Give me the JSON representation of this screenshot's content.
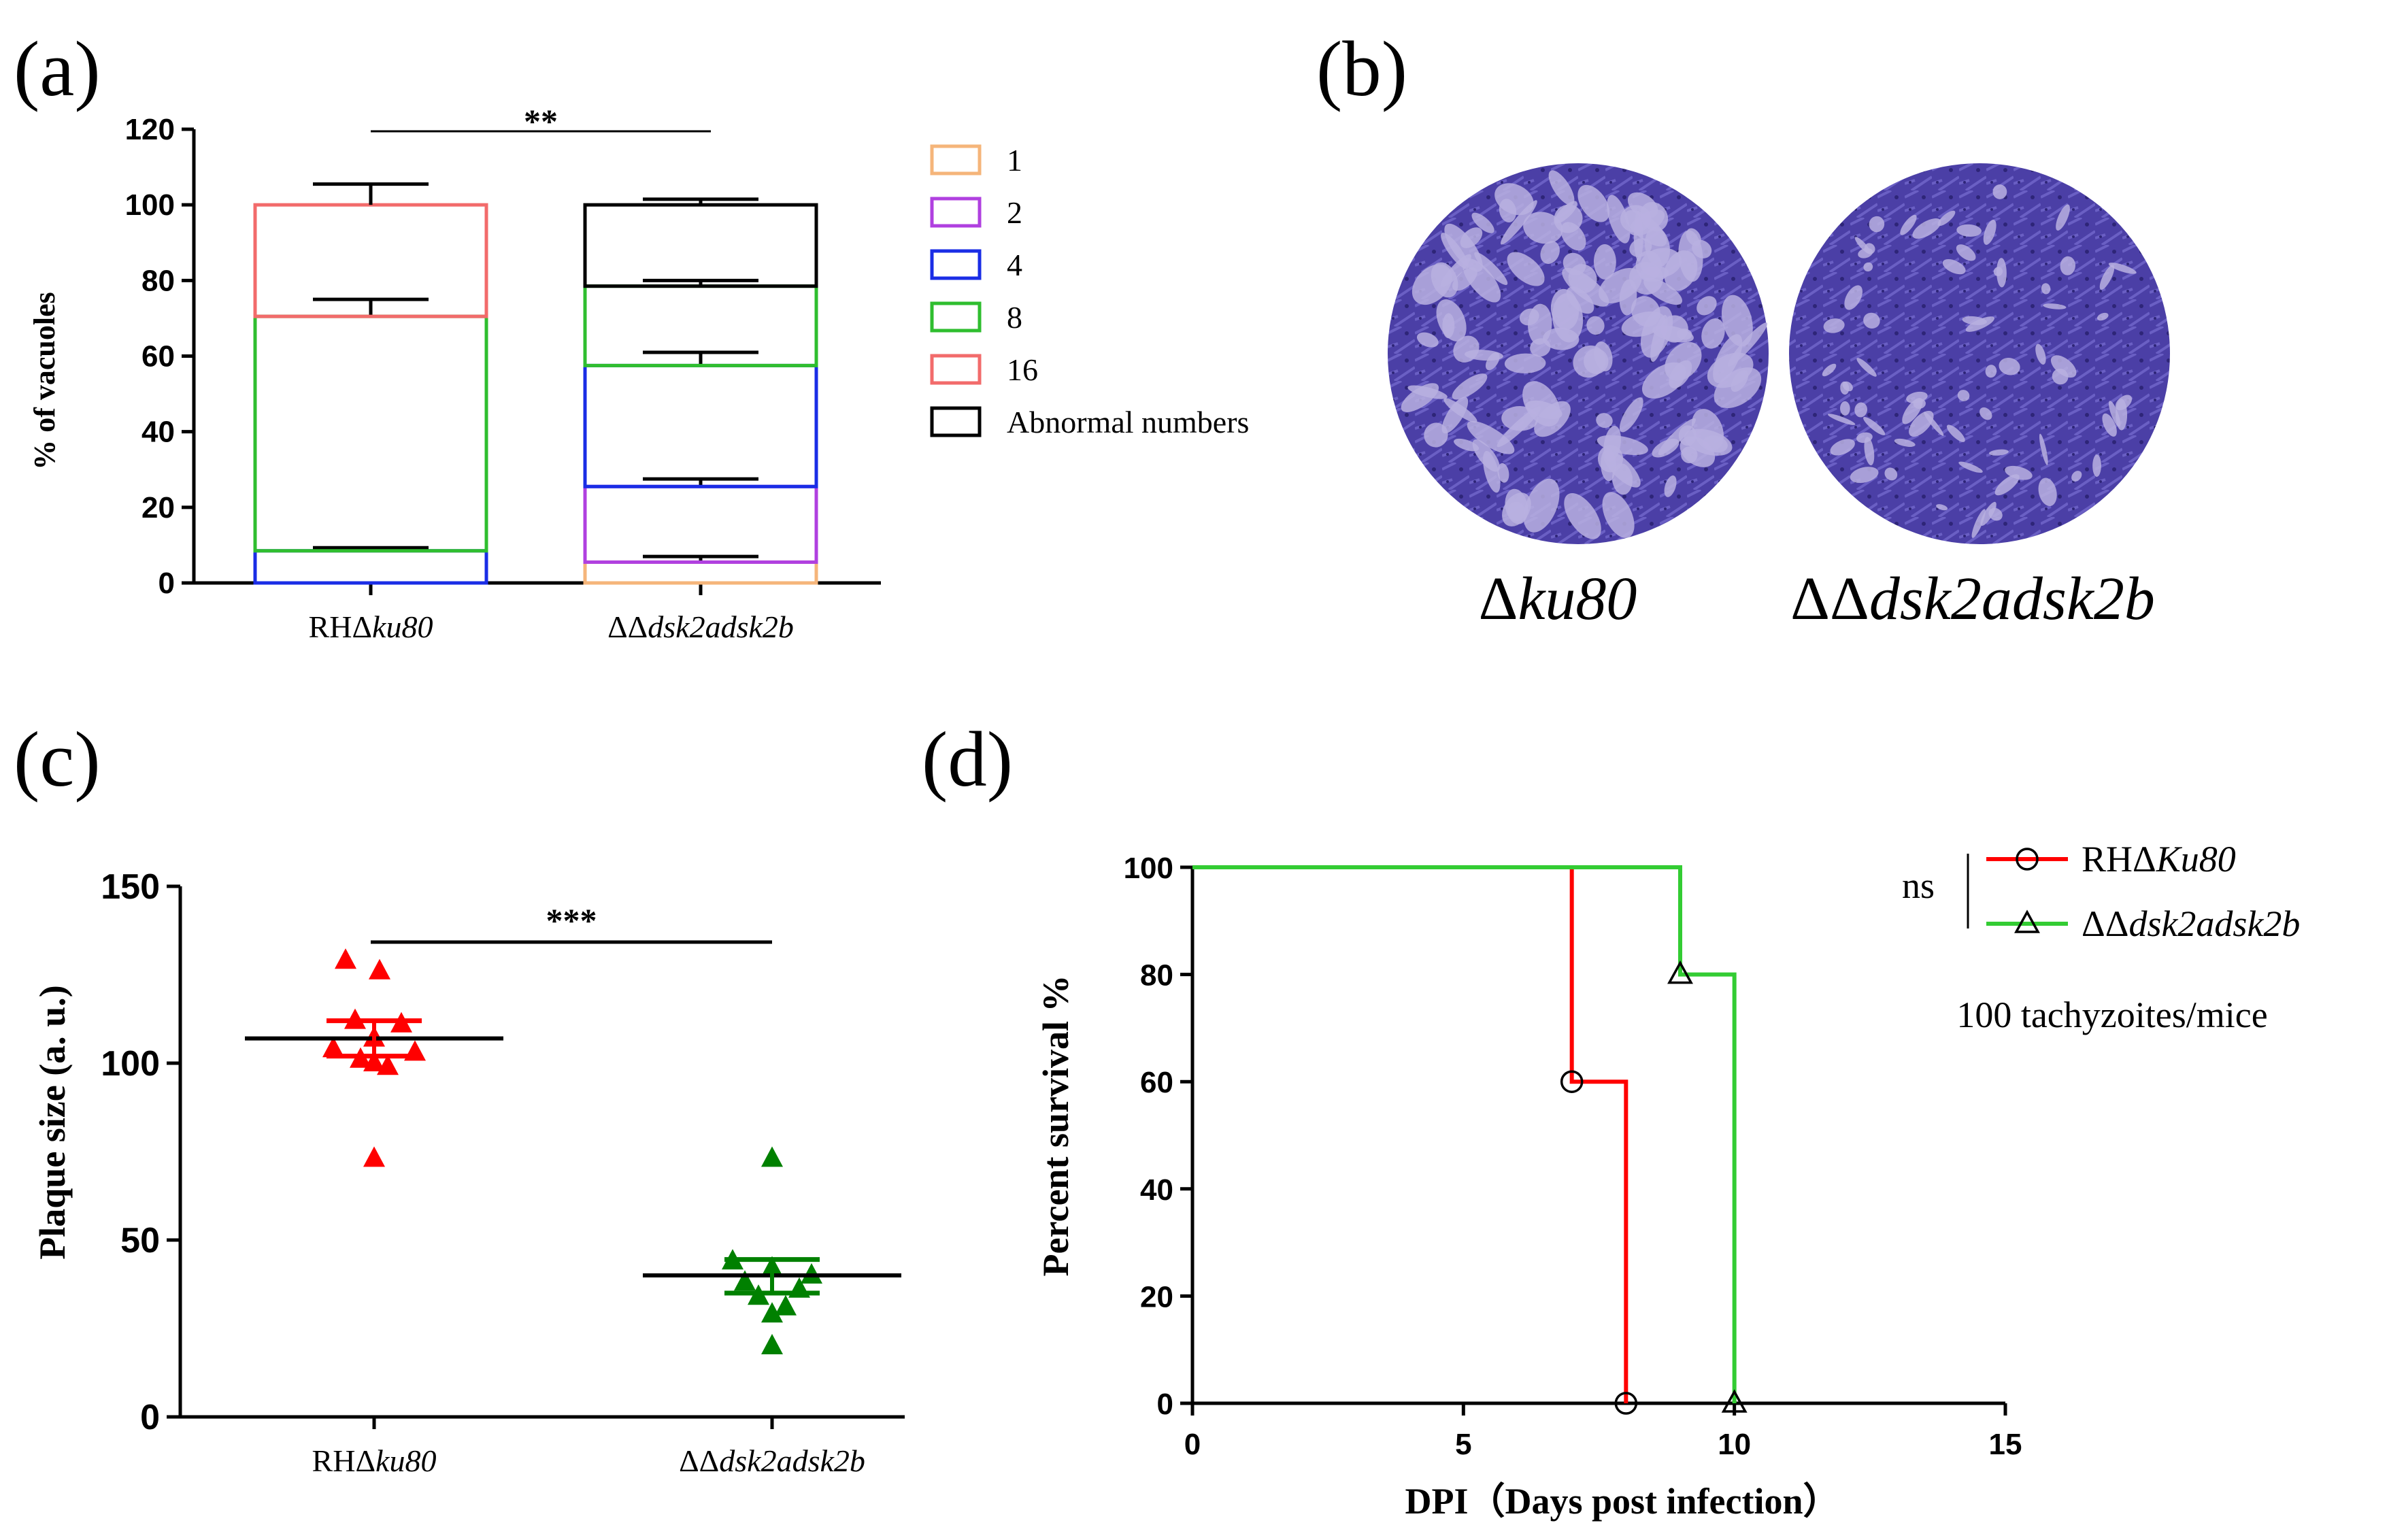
{
  "chart_data": [
    {
      "panel": "(a)",
      "type": "bar",
      "stacked": true,
      "ylabel": "% of vacuoles",
      "ylim": [
        0,
        120
      ],
      "yticks": [
        0,
        20,
        40,
        60,
        80,
        100,
        120
      ],
      "categories": [
        {
          "prefix": "RHΔ",
          "italic": "ku80"
        },
        {
          "prefix": "ΔΔ",
          "italic": "dsk2adsk2b"
        }
      ],
      "series": [
        {
          "name": "1",
          "color": "#f5b57a",
          "values": [
            0,
            5.5
          ],
          "errors": [
            0,
            1.5
          ]
        },
        {
          "name": "2",
          "color": "#b040e0",
          "values": [
            0,
            20
          ],
          "errors": [
            0,
            2
          ]
        },
        {
          "name": "4",
          "color": "#1a2de6",
          "values": [
            8.5,
            32
          ],
          "errors": [
            0.8,
            3.5
          ]
        },
        {
          "name": "8",
          "color": "#2fbe2f",
          "values": [
            62,
            21
          ],
          "errors": [
            4.5,
            1.5
          ]
        },
        {
          "name": "16",
          "color": "#f26b6b",
          "values": [
            29.5,
            0
          ],
          "errors": [
            5.5,
            0
          ]
        },
        {
          "name": "Abnormal numbers",
          "color": "#000000",
          "values": [
            0,
            21.5
          ],
          "errors": [
            0,
            1.5
          ]
        }
      ],
      "significance": "**"
    },
    {
      "panel": "(b)",
      "type": "image",
      "captions": [
        {
          "prefix": "Δ",
          "italic": "ku80"
        },
        {
          "prefix": "ΔΔ",
          "italic": "dsk2adsk2b"
        }
      ]
    },
    {
      "panel": "(c)",
      "type": "scatter",
      "ylabel": "Plaque size (a. u.)",
      "ylim": [
        0,
        150
      ],
      "yticks": [
        0,
        50,
        100,
        150
      ],
      "categories": [
        {
          "prefix": "RHΔ",
          "italic": "ku80"
        },
        {
          "prefix": "ΔΔ",
          "italic": "dsk2adsk2b"
        }
      ],
      "groups": [
        {
          "color": "#ff0000",
          "points": [
            129,
            126,
            112,
            111,
            107,
            104,
            103,
            101,
            99,
            100,
            73
          ],
          "mean": 107,
          "sem": [
            102,
            112
          ]
        },
        {
          "color": "#008000",
          "points": [
            73,
            44,
            42,
            40,
            38,
            36,
            34,
            31,
            29,
            20
          ],
          "mean": 40,
          "sem": [
            35,
            44.5
          ]
        }
      ],
      "significance": "***"
    },
    {
      "panel": "(d)",
      "type": "line",
      "step": true,
      "xlabel": "DPI（Days post infection）",
      "ylabel": "Percent survival %",
      "xlim": [
        0,
        15
      ],
      "ylim": [
        0,
        100
      ],
      "xticks": [
        0,
        5,
        10,
        15
      ],
      "yticks": [
        0,
        20,
        40,
        60,
        80,
        100
      ],
      "series": [
        {
          "name_prefix": "RHΔ",
          "name_italic": "Ku80",
          "color": "#ff0000",
          "marker": "circle",
          "steps": [
            [
              0,
              100
            ],
            [
              7,
              100
            ],
            [
              7,
              60
            ],
            [
              8,
              60
            ],
            [
              8,
              0
            ]
          ],
          "markers": [
            [
              7,
              60
            ],
            [
              8,
              0
            ]
          ]
        },
        {
          "name_prefix": "ΔΔ",
          "name_italic": "dsk2adsk2b",
          "color": "#33cc33",
          "marker": "triangle",
          "steps": [
            [
              0,
              100
            ],
            [
              9,
              100
            ],
            [
              9,
              80
            ],
            [
              10,
              80
            ],
            [
              10,
              0
            ]
          ],
          "markers": [
            [
              9,
              80
            ],
            [
              10,
              0
            ]
          ]
        }
      ],
      "significance": "ns",
      "annotation": "100 tachyzoites/mice"
    }
  ]
}
